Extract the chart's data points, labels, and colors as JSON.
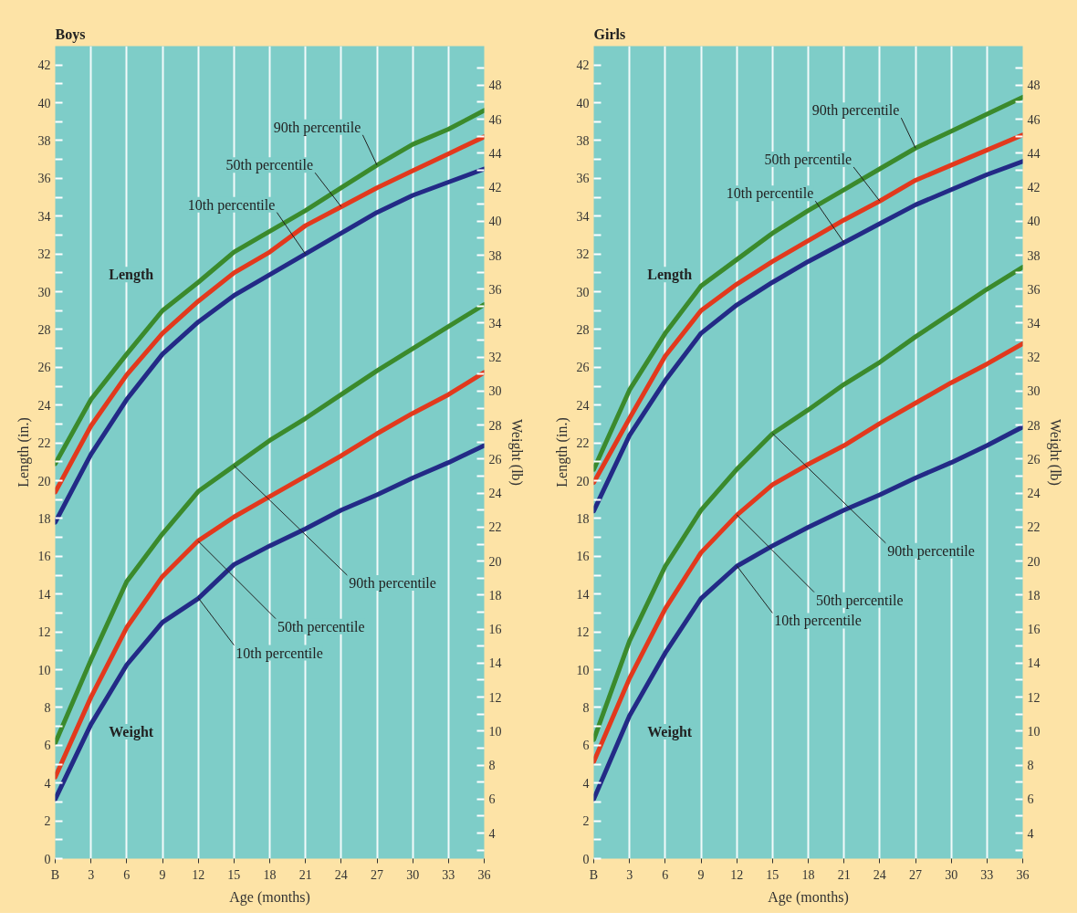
{
  "chart_data": [
    {
      "type": "line",
      "title": "Boys",
      "xlabel": "Age (months)",
      "ylabel": "Length (in.)",
      "y2label": "Weight (lb)",
      "grid": "x",
      "annotations": [
        "Length",
        "Weight",
        {
          "text": "90th percentile",
          "x": 27,
          "y": 36.7
        },
        {
          "text": "50th percentile",
          "x": 24,
          "y": 34.5
        },
        {
          "text": "10th percentile",
          "x": 21,
          "y": 32.0
        },
        {
          "text": "90th percentile",
          "x": 15,
          "y": 20.8
        },
        {
          "text": "50th percentile",
          "x": 12,
          "y": 16.8
        },
        {
          "text": "10th percentile",
          "x": 12,
          "y": 13.8
        }
      ],
      "x": [
        0,
        3,
        6,
        9,
        12,
        15,
        18,
        21,
        24,
        27,
        30,
        33,
        36
      ],
      "xlim": [
        0,
        36
      ],
      "xticks": [
        {
          "value": 0,
          "label": "B"
        },
        3,
        6,
        9,
        12,
        15,
        18,
        21,
        24,
        27,
        30,
        33,
        36
      ],
      "ylim": [
        0,
        43
      ],
      "yticks": [
        0,
        {
          "value": 1,
          "label": null
        },
        2,
        {
          "value": 3,
          "label": null
        },
        4,
        {
          "value": 5,
          "label": null
        },
        6,
        {
          "value": 7,
          "label": null
        },
        8,
        {
          "value": 9,
          "label": null
        },
        10,
        {
          "value": 11,
          "label": null
        },
        12,
        {
          "value": 13,
          "label": null
        },
        14,
        {
          "value": 15,
          "label": null
        },
        16,
        {
          "value": 17,
          "label": null
        },
        18,
        {
          "value": 19,
          "label": null
        },
        20,
        {
          "value": 21,
          "label": null
        },
        22,
        {
          "value": 23,
          "label": null
        },
        24,
        {
          "value": 25,
          "label": null
        },
        26,
        {
          "value": 27,
          "label": null
        },
        28,
        {
          "value": 29,
          "label": null
        },
        30,
        {
          "value": 31,
          "label": null
        },
        32,
        {
          "value": 33,
          "label": null
        },
        34,
        {
          "value": 35,
          "label": null
        },
        36,
        {
          "value": 37,
          "label": null
        },
        38,
        {
          "value": 39,
          "label": null
        },
        40,
        {
          "value": 41,
          "label": null
        },
        42
      ],
      "y2lim": [
        2.5,
        50.3
      ],
      "y2ticks": [
        {
          "value": 3,
          "label": null
        },
        4,
        {
          "value": 5,
          "label": null
        },
        6,
        {
          "value": 7,
          "label": null
        },
        8,
        {
          "value": 9,
          "label": null
        },
        10,
        {
          "value": 11,
          "label": null
        },
        12,
        {
          "value": 13,
          "label": null
        },
        14,
        {
          "value": 15,
          "label": null
        },
        16,
        {
          "value": 17,
          "label": null
        },
        18,
        {
          "value": 19,
          "label": null
        },
        20,
        {
          "value": 21,
          "label": null
        },
        22,
        {
          "value": 23,
          "label": null
        },
        24,
        {
          "value": 25,
          "label": null
        },
        26,
        {
          "value": 27,
          "label": null
        },
        28,
        {
          "value": 29,
          "label": null
        },
        30,
        {
          "value": 31,
          "label": null
        },
        32,
        {
          "value": 33,
          "label": null
        },
        34,
        {
          "value": 35,
          "label": null
        },
        36,
        {
          "value": 37,
          "label": null
        },
        38,
        {
          "value": 39,
          "label": null
        },
        40,
        {
          "value": 41,
          "label": null
        },
        42,
        {
          "value": 43,
          "label": null
        },
        44,
        {
          "value": 45,
          "label": null
        },
        46,
        {
          "value": 47,
          "label": null
        },
        48,
        {
          "value": 49,
          "label": null
        }
      ],
      "series": [
        {
          "color": "#3b8a2c",
          "values": [
            20.9,
            24.3,
            26.7,
            29.0,
            30.5,
            32.1,
            33.2,
            34.3,
            35.5,
            36.7,
            37.8,
            38.6,
            39.6
          ]
        },
        {
          "color": "#e2391d",
          "values": [
            19.4,
            22.9,
            25.6,
            27.8,
            29.5,
            31.0,
            32.1,
            33.5,
            34.5,
            35.5,
            36.4,
            37.3,
            38.2
          ]
        },
        {
          "color": "#232a86",
          "values": [
            17.8,
            21.4,
            24.3,
            26.7,
            28.4,
            29.8,
            30.9,
            32.0,
            33.1,
            34.2,
            35.1,
            35.8,
            36.5
          ]
        },
        {
          "color": "#3b8a2c",
          "axis": "y2",
          "values": [
            9.3,
            14.2,
            18.8,
            21.6,
            24.1,
            25.6,
            27.1,
            28.4,
            29.8,
            31.2,
            32.5,
            33.8,
            35.1
          ]
        },
        {
          "color": "#e2391d",
          "axis": "y2",
          "values": [
            7.3,
            12.0,
            16.1,
            19.1,
            21.2,
            22.6,
            23.8,
            25.0,
            26.2,
            27.5,
            28.7,
            29.8,
            31.1
          ]
        },
        {
          "color": "#232a86",
          "axis": "y2",
          "values": [
            6.0,
            10.4,
            13.9,
            16.4,
            17.8,
            19.8,
            20.9,
            21.9,
            23.0,
            23.9,
            24.9,
            25.8,
            26.8
          ]
        }
      ]
    },
    {
      "type": "line",
      "title": "Girls",
      "xlabel": "Age (months)",
      "ylabel": "Length (in.)",
      "y2label": "Weight (lb)",
      "grid": "x",
      "annotations": [
        "Length",
        "Weight",
        {
          "text": "90th percentile",
          "x": 27,
          "y": 37.6
        },
        {
          "text": "50th percentile",
          "x": 24,
          "y": 34.8
        },
        {
          "text": "10th percentile",
          "x": 21,
          "y": 32.6
        },
        {
          "text": "90th percentile",
          "x": 15,
          "y": 22.5
        },
        {
          "text": "50th percentile",
          "x": 12,
          "y": 18.2
        },
        {
          "text": "10th percentile",
          "x": 12,
          "y": 15.5
        }
      ],
      "x": [
        0,
        3,
        6,
        9,
        12,
        15,
        18,
        21,
        24,
        27,
        30,
        33,
        36
      ],
      "xlim": [
        0,
        36
      ],
      "xticks": [
        {
          "value": 0,
          "label": "B"
        },
        3,
        6,
        9,
        12,
        15,
        18,
        21,
        24,
        27,
        30,
        33,
        36
      ],
      "ylim": [
        0,
        43
      ],
      "yticks": [
        0,
        {
          "value": 1,
          "label": null
        },
        2,
        {
          "value": 3,
          "label": null
        },
        4,
        {
          "value": 5,
          "label": null
        },
        6,
        {
          "value": 7,
          "label": null
        },
        8,
        {
          "value": 9,
          "label": null
        },
        10,
        {
          "value": 11,
          "label": null
        },
        12,
        {
          "value": 13,
          "label": null
        },
        14,
        {
          "value": 15,
          "label": null
        },
        16,
        {
          "value": 17,
          "label": null
        },
        18,
        {
          "value": 19,
          "label": null
        },
        20,
        {
          "value": 21,
          "label": null
        },
        22,
        {
          "value": 23,
          "label": null
        },
        24,
        {
          "value": 25,
          "label": null
        },
        26,
        {
          "value": 27,
          "label": null
        },
        28,
        {
          "value": 29,
          "label": null
        },
        30,
        {
          "value": 31,
          "label": null
        },
        32,
        {
          "value": 33,
          "label": null
        },
        34,
        {
          "value": 35,
          "label": null
        },
        36,
        {
          "value": 37,
          "label": null
        },
        38,
        {
          "value": 39,
          "label": null
        },
        40,
        {
          "value": 41,
          "label": null
        },
        42
      ],
      "y2lim": [
        2.5,
        50.3
      ],
      "y2ticks": [
        {
          "value": 3,
          "label": null
        },
        4,
        {
          "value": 5,
          "label": null
        },
        6,
        {
          "value": 7,
          "label": null
        },
        8,
        {
          "value": 9,
          "label": null
        },
        10,
        {
          "value": 11,
          "label": null
        },
        12,
        {
          "value": 13,
          "label": null
        },
        14,
        {
          "value": 15,
          "label": null
        },
        16,
        {
          "value": 17,
          "label": null
        },
        18,
        {
          "value": 19,
          "label": null
        },
        20,
        {
          "value": 21,
          "label": null
        },
        22,
        {
          "value": 23,
          "label": null
        },
        24,
        {
          "value": 25,
          "label": null
        },
        26,
        {
          "value": 27,
          "label": null
        },
        28,
        {
          "value": 29,
          "label": null
        },
        30,
        {
          "value": 31,
          "label": null
        },
        32,
        {
          "value": 33,
          "label": null
        },
        34,
        {
          "value": 35,
          "label": null
        },
        36,
        {
          "value": 37,
          "label": null
        },
        38,
        {
          "value": 39,
          "label": null
        },
        40,
        {
          "value": 41,
          "label": null
        },
        42,
        {
          "value": 43,
          "label": null
        },
        44,
        {
          "value": 45,
          "label": null
        },
        46,
        {
          "value": 47,
          "label": null
        },
        48,
        {
          "value": 49,
          "label": null
        }
      ],
      "series": [
        {
          "color": "#3b8a2c",
          "values": [
            20.6,
            24.8,
            27.8,
            30.3,
            31.7,
            33.1,
            34.3,
            35.4,
            36.5,
            37.6,
            38.5,
            39.4,
            40.3
          ]
        },
        {
          "color": "#e2391d",
          "values": [
            19.9,
            23.3,
            26.6,
            29.0,
            30.4,
            31.6,
            32.7,
            33.8,
            34.8,
            35.9,
            36.7,
            37.5,
            38.3
          ]
        },
        {
          "color": "#232a86",
          "values": [
            18.4,
            22.4,
            25.3,
            27.8,
            29.3,
            30.5,
            31.6,
            32.6,
            33.6,
            34.6,
            35.4,
            36.2,
            36.9
          ]
        },
        {
          "color": "#3b8a2c",
          "axis": "y2",
          "values": [
            9.5,
            15.3,
            19.7,
            23.0,
            25.4,
            27.5,
            28.9,
            30.4,
            31.7,
            33.2,
            34.6,
            36.0,
            37.3
          ]
        },
        {
          "color": "#e2391d",
          "axis": "y2",
          "values": [
            8.2,
            13.1,
            17.2,
            20.5,
            22.7,
            24.5,
            25.7,
            26.8,
            28.1,
            29.3,
            30.5,
            31.6,
            32.8
          ]
        },
        {
          "color": "#232a86",
          "axis": "y2",
          "values": [
            6.0,
            10.9,
            14.6,
            17.8,
            19.7,
            20.9,
            22.0,
            23.0,
            23.9,
            24.9,
            25.8,
            26.8,
            27.9
          ]
        }
      ]
    }
  ]
}
